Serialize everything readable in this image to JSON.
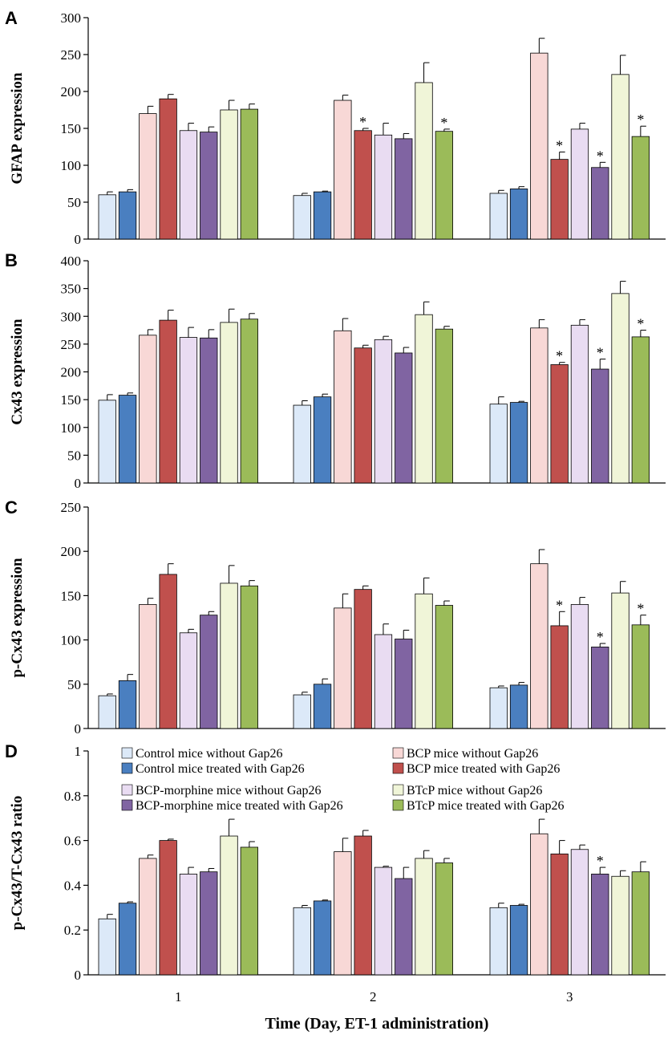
{
  "chart_data": {
    "type": "bar",
    "xlabel": "Time (Day, ET-1 administration)",
    "x_tick_labels": [
      "1",
      "2",
      "3"
    ],
    "series_names": [
      "Control mice  without Gap26",
      "Control mice treated with Gap26",
      "BCP mice  without Gap26",
      "BCP mice treated with Gap26",
      "BCP-morphine mice  without Gap26",
      "BCP-morphine mice treated with Gap26",
      "BTcP mice  without Gap26",
      "BTcP mice treated with Gap26"
    ],
    "series_colors": [
      "#dce9f8",
      "#4a7fc0",
      "#f8d8d6",
      "#c0504d",
      "#e9dcf2",
      "#8064a2",
      "#f0f5d8",
      "#9bbb59"
    ],
    "panels": [
      {
        "letter": "A",
        "ylabel": "GFAP expression",
        "ylim": [
          0,
          300
        ],
        "yticks": [
          0,
          50,
          100,
          150,
          200,
          250,
          300
        ],
        "values": [
          [
            60,
            64,
            170,
            190,
            147,
            145,
            175,
            176
          ],
          [
            59,
            64,
            188,
            147,
            141,
            136,
            212,
            146
          ],
          [
            62,
            68,
            252,
            108,
            149,
            97,
            223,
            139
          ]
        ],
        "errors": [
          [
            4,
            3,
            10,
            6,
            10,
            7,
            13,
            7
          ],
          [
            3,
            1,
            7,
            3,
            16,
            7,
            27,
            3
          ],
          [
            4,
            3,
            20,
            10,
            8,
            7,
            26,
            14
          ]
        ],
        "significant": [
          [
            0,
            0,
            0,
            0,
            0,
            0,
            0,
            0
          ],
          [
            0,
            0,
            0,
            1,
            0,
            0,
            0,
            1
          ],
          [
            0,
            0,
            0,
            1,
            0,
            1,
            0,
            1
          ]
        ]
      },
      {
        "letter": "B",
        "ylabel": "Cx43 expression",
        "ylim": [
          0,
          400
        ],
        "yticks": [
          0,
          50,
          100,
          150,
          200,
          250,
          300,
          350,
          400
        ],
        "values": [
          [
            149,
            158,
            266,
            293,
            262,
            261,
            289,
            295
          ],
          [
            140,
            155,
            274,
            243,
            258,
            234,
            303,
            277
          ],
          [
            142,
            145,
            279,
            213,
            284,
            205,
            341,
            263
          ]
        ],
        "errors": [
          [
            10,
            4,
            10,
            18,
            18,
            15,
            24,
            10
          ],
          [
            8,
            5,
            22,
            5,
            6,
            10,
            23,
            5
          ],
          [
            13,
            2,
            15,
            4,
            10,
            18,
            22,
            12
          ]
        ],
        "significant": [
          [
            0,
            0,
            0,
            0,
            0,
            0,
            0,
            0
          ],
          [
            0,
            0,
            0,
            0,
            0,
            0,
            0,
            0
          ],
          [
            0,
            0,
            0,
            1,
            0,
            1,
            0,
            1
          ]
        ]
      },
      {
        "letter": "C",
        "ylabel": "p-Cx43 expression",
        "ylim": [
          0,
          250
        ],
        "yticks": [
          0,
          50,
          100,
          150,
          200,
          250
        ],
        "values": [
          [
            37,
            54,
            140,
            174,
            108,
            128,
            164,
            161
          ],
          [
            38,
            50,
            136,
            157,
            106,
            101,
            152,
            139
          ],
          [
            46,
            49,
            186,
            116,
            140,
            92,
            153,
            117
          ]
        ],
        "errors": [
          [
            2,
            7,
            7,
            12,
            4,
            4,
            20,
            6
          ],
          [
            3,
            6,
            16,
            4,
            12,
            10,
            18,
            5
          ],
          [
            2,
            3,
            16,
            16,
            8,
            4,
            13,
            11
          ]
        ],
        "significant": [
          [
            0,
            0,
            0,
            0,
            0,
            0,
            0,
            0
          ],
          [
            0,
            0,
            0,
            0,
            0,
            0,
            0,
            0
          ],
          [
            0,
            0,
            0,
            1,
            0,
            1,
            0,
            1
          ]
        ]
      },
      {
        "letter": "D",
        "ylabel": "p-Cx43/T-Cx43 ratio",
        "ylim": [
          0,
          1
        ],
        "yticks": [
          0,
          0.2,
          0.4,
          0.6,
          0.8,
          1
        ],
        "values": [
          [
            0.25,
            0.32,
            0.52,
            0.6,
            0.45,
            0.46,
            0.62,
            0.57
          ],
          [
            0.3,
            0.33,
            0.55,
            0.62,
            0.48,
            0.43,
            0.52,
            0.5
          ],
          [
            0.3,
            0.31,
            0.63,
            0.54,
            0.56,
            0.45,
            0.44,
            0.46
          ]
        ],
        "errors": [
          [
            0.02,
            0.006,
            0.015,
            0.006,
            0.03,
            0.015,
            0.075,
            0.025
          ],
          [
            0.01,
            0.004,
            0.06,
            0.025,
            0.005,
            0.05,
            0.035,
            0.02
          ],
          [
            0.02,
            0.005,
            0.065,
            0.06,
            0.02,
            0.03,
            0.025,
            0.045
          ]
        ],
        "significant": [
          [
            0,
            0,
            0,
            0,
            0,
            0,
            0,
            0
          ],
          [
            0,
            0,
            0,
            0,
            0,
            0,
            0,
            0
          ],
          [
            0,
            0,
            0,
            0,
            0,
            1,
            0,
            0
          ]
        ]
      }
    ],
    "significance_symbol": "*",
    "legend_location": "top of panel D"
  }
}
